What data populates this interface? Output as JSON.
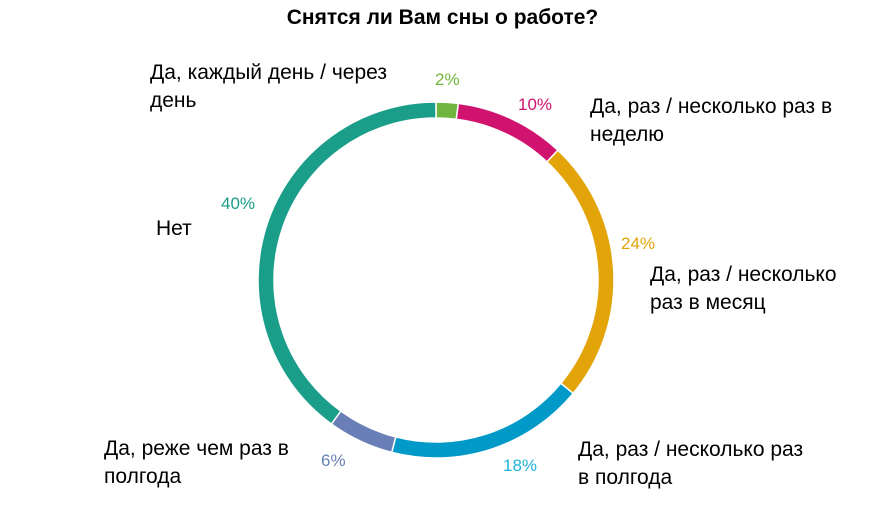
{
  "chart_data": {
    "type": "pie",
    "style": "donut",
    "title": "Снятся ли Вам сны о работе?",
    "slices": [
      {
        "label": "Да, каждый день / через день",
        "value": 2,
        "value_label": "2%",
        "color": "#70b63e"
      },
      {
        "label": "Да, раз / несколько раз в неделю",
        "value": 10,
        "value_label": "10%",
        "color": "#d0136e"
      },
      {
        "label": "Да, раз / несколько раз в месяц",
        "value": 24,
        "value_label": "24%",
        "color": "#e2a409"
      },
      {
        "label": "Да, раз / несколько раз в полгода",
        "value": 18,
        "value_label": "18%",
        "color": "#0099c8"
      },
      {
        "label": "Да, реже чем раз в полгода",
        "value": 6,
        "value_label": "6%",
        "color": "#6a7fb8"
      },
      {
        "label": "Нет",
        "value": 40,
        "value_label": "40%",
        "color": "#1a9e8a"
      }
    ],
    "legend": "none"
  }
}
